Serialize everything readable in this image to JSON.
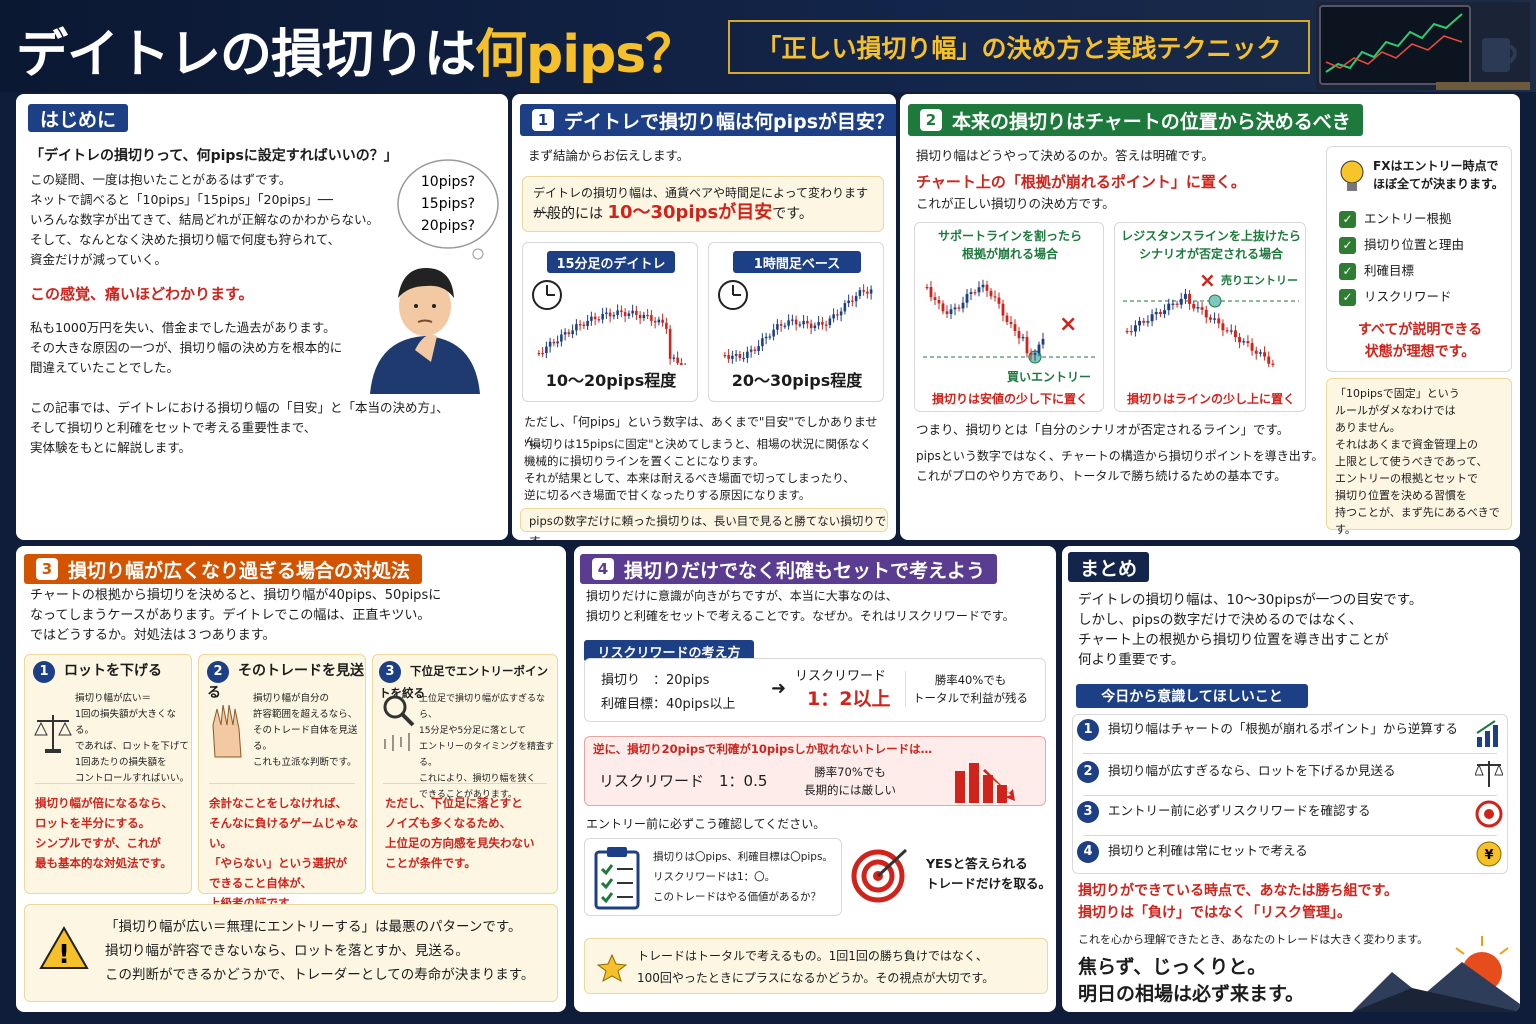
{
  "header": {
    "title_a": "デイトレの損切りは",
    "title_b": "何pips？",
    "subtitle": "「正しい損切り幅」の決め方と実践テクニック"
  },
  "intro": {
    "title": "はじめに",
    "q": "「デイトレの損切りって、何pipsに設定すればいいの？」",
    "p1": "この疑問、一度は抱いたことがあるはずです。\nネットで調べると「10pips」「15pips」「20pips」──\nいろんな数字が出てきて、結局どれが正解なのかわからない。\nそして、なんとなく決めた損切り幅で何度も狩られて、\n資金だけが減っていく。",
    "emph": "この感覚、痛いほどわかります。",
    "p2": "私も1000万円を失い、借金までした過去があります。\nその大きな原因の一つが、損切り幅の決め方を根本的に\n間違えていたことでした。",
    "p3": "この記事では、デイトレにおける損切り幅の「目安」と「本当の決め方」、\nそして損切りと利確をセットで考える重要性まで、\n実体験をもとに解説します。",
    "bubble": [
      "10pips?",
      "15pips?",
      "20pips?"
    ]
  },
  "s1": {
    "num": "1",
    "title": "デイトレで損切り幅は何pipsが目安？",
    "lead": "まず結論からお伝えします。",
    "box1": "デイトレの損切り幅は、通貨ペアや時間足によって変わりますが、",
    "box2a": "一般的には",
    "box2b": "10〜30pipsが目安",
    "box2c": "です。",
    "c1_label": "15分足のデイトレ",
    "c1_value": "10〜20pips程度",
    "c2_label": "1時間足ベース",
    "c2_value": "20〜30pips程度",
    "p1": "ただし、「何pips」という数字は、あくまで\"目安\"でしかありません。",
    "p2": "\"損切りは15pipsに固定\"と決めてしまうと、相場の状況に関係なく\n機械的に損切りラインを置くことになります。\nそれが結果として、本来は耐えるべき場面で切ってしまったり、\n逆に切るべき場面で甘くなったりする原因になります。",
    "foot": "pipsの数字だけに頼った損切りは、長い目で見ると勝てない損切りです。"
  },
  "s2": {
    "num": "2",
    "title": "本来の損切りはチャートの位置から決めるべき",
    "lead": "損切り幅はどうやって決めるのか。答えは明確です。",
    "emph": "チャート上の「根拠が崩れるポイント」に置く。",
    "p1": "これが正しい損切りの決め方です。",
    "c1_title": "サポートラインを割ったら\n根拠が崩れる場合",
    "c1_entry": "買いエントリー",
    "c1_foot": "損切りは安値の少し下に置く",
    "c2_title": "レジスタンスラインを上抜けたら\nシナリオが否定される場合",
    "c2_entry": "売りエントリー",
    "c2_foot": "損切りはラインの少し上に置く",
    "p2": "つまり、損切りとは「自分のシナリオが否定されるライン」です。",
    "p3": "pipsという数字ではなく、チャートの構造から損切りポイントを導き出す。\nこれがプロのやり方であり、トータルで勝ち続けるための基本です。",
    "side_head": "FXはエントリー時点で\nほぼ全てが決まります。",
    "checks": [
      "エントリー根拠",
      "損切り位置と理由",
      "利確目標",
      "リスクリワード"
    ],
    "side_emph": "すべてが説明できる\n状態が理想です。",
    "note": "「10pipsで固定」という\nルールがダメなわけでは\nありません。\nそれはあくまで資金管理上の\n上限として使うべきであって、\nエントリーの根拠とセットで\n損切り位置を決める習慣を\n持つことが、まず先にあるべきです。"
  },
  "s3": {
    "num": "3",
    "title": "損切り幅が広くなり過ぎる場合の対処法",
    "p1": "チャートの根拠から損切りを決めると、損切り幅が40pips、50pipsに\nなってしまうケースがあります。デイトレでこの幅は、正直キツい。\nではどうするか。対処法は３つあります。",
    "cards": [
      {
        "n": "1",
        "title": "ロットを下げる",
        "body": "損切り幅が広い＝\n1回の損失額が大きくなる。\nであれば、ロットを下げて\n1回あたりの損失額を\nコントロールすればいい。",
        "red": "損切り幅が倍になるなら、\nロットを半分にする。\nシンプルですが、これが\n最も基本的な対処法です。"
      },
      {
        "n": "2",
        "title": "そのトレードを見送る",
        "body": "損切り幅が自分の\n許容範囲を超えるなら、\nそのトレード自体を見送る。\nこれも立派な判断です。",
        "red": "余計なことをしなければ、\nそんなに負けるゲームじゃない。\n「やらない」という選択が\nできること自体が、\n上級者の証です。"
      },
      {
        "n": "3",
        "title": "下位足でエントリーポイントを絞る",
        "body": "上位足で損切り幅が広すぎるなら、\n15分足や5分足に落として\nエントリーのタイミングを精査する。\nこれにより、損切り幅を狭く\nできることがあります。",
        "red": "ただし、下位足に落とすと\nノイズも多くなるため、\n上位足の方向感を見失わない\nことが条件です。"
      }
    ],
    "warn": "「損切り幅が広い＝無理にエントリーする」は最悪のパターンです。\n損切り幅が許容できないなら、ロットを落とすか、見送る。\nこの判断ができるかどうかで、トレーダーとしての寿命が決まります。"
  },
  "s4": {
    "num": "4",
    "title": "損切りだけでなく利確もセットで考えよう",
    "p1": "損切りだけに意識が向きがちですが、本当に大事なのは、\n損切りと利確をセットで考えることです。なぜか。それはリスクリワードです。",
    "pill": "リスクリワードの考え方",
    "sl": "損切り　：20pips",
    "tp": "利確目標：40pips以上",
    "rr_label": "リスクリワード",
    "rr_value": "1：2以上",
    "rr_note": "勝率40%でも\nトータルで利益が残る",
    "bad_head": "逆に、損切り20pipsで利確が10pipsしか取れないトレードは…",
    "bad_rr": "リスクリワード　1：0.5",
    "bad_note": "勝率70%でも\n長期的には厳しい",
    "check_lead": "エントリー前に必ずこう確認してください。",
    "checklist": "損切りは〇pips、利確目標は〇pips。\nリスクリワードは1：〇。\nこのトレードはやる価値があるか？",
    "yes": "YESと答えられる\nトレードだけを取る。",
    "star": "トレードはトータルで考えるもの。1回1回の勝ち負けではなく、\n100回やったときにプラスになるかどうか。その視点が大切です。"
  },
  "sum": {
    "title": "まとめ",
    "p1": "デイトレの損切り幅は、10〜30pipsが一つの目安です。\nしかし、pipsの数字だけで決めるのではなく、\nチャート上の根拠から損切り位置を導き出すことが\n何より重要です。",
    "pill": "今日から意識してほしいこと",
    "items": [
      "損切り幅はチャートの「根拠が崩れるポイント」から逆算する",
      "損切り幅が広すぎるなら、ロットを下げるか見送る",
      "エントリー前に必ずリスクリワードを確認する",
      "損切りと利確は常にセットで考える"
    ],
    "emph": "損切りができている時点で、あなたは勝ち組です。\n損切りは「負け」ではなく「リスク管理」。",
    "p2": "これを心から理解できたとき、あなたのトレードは大きく変わります。",
    "close": "焦らず、じっくりと。\n明日の相場は必ず来ます。"
  },
  "colors": {
    "navy": "#1d3f86",
    "green": "#1e7a3c",
    "orange": "#d35400",
    "purple": "#5a3d91",
    "red": "#d0231b"
  }
}
